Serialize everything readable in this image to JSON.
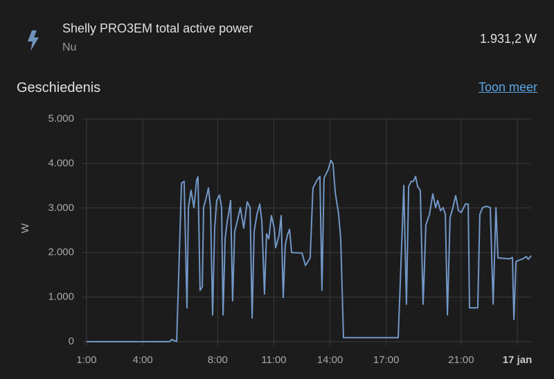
{
  "header": {
    "title": "Shelly PRO3EM total active power",
    "subtitle": "Nu",
    "state": "1.931,2 W"
  },
  "history": {
    "title": "Geschiedenis",
    "link": "Toon meer"
  },
  "chart_data": {
    "type": "line",
    "ylabel": "W",
    "grid": true,
    "xlim": [
      1,
      24.74
    ],
    "ylim": [
      0,
      5000
    ],
    "xticks": [
      {
        "value": 1,
        "label": "1:00"
      },
      {
        "value": 4,
        "label": "4:00"
      },
      {
        "value": 8,
        "label": "8:00"
      },
      {
        "value": 11,
        "label": "11:00"
      },
      {
        "value": 14,
        "label": "14:00"
      },
      {
        "value": 17,
        "label": "17:00"
      },
      {
        "value": 21,
        "label": "21:00"
      },
      {
        "value": 24,
        "label": "17 jan"
      }
    ],
    "yticks": [
      0,
      {
        "value": 1000,
        "label": "1.000"
      },
      {
        "value": 2000,
        "label": "2.000"
      },
      {
        "value": 3000,
        "label": "3.000"
      },
      {
        "value": 4000,
        "label": "4.000"
      },
      {
        "value": 5000,
        "label": "5.000"
      }
    ],
    "x": [
      1.0,
      5.44,
      5.55,
      5.81,
      6.07,
      6.21,
      6.36,
      6.44,
      6.58,
      6.73,
      6.88,
      6.95,
      7.06,
      7.18,
      7.25,
      7.4,
      7.51,
      7.62,
      7.73,
      7.84,
      7.95,
      8.1,
      8.21,
      8.29,
      8.4,
      8.51,
      8.58,
      8.69,
      8.8,
      8.91,
      9.06,
      9.21,
      9.39,
      9.58,
      9.73,
      9.84,
      9.95,
      10.1,
      10.25,
      10.36,
      10.5,
      10.61,
      10.73,
      10.87,
      11.02,
      11.1,
      11.28,
      11.39,
      11.5,
      11.61,
      11.72,
      11.84,
      11.95,
      12.5,
      12.69,
      12.94,
      13.09,
      13.31,
      13.46,
      13.57,
      13.68,
      13.91,
      14.05,
      14.16,
      14.28,
      14.46,
      14.57,
      14.72,
      17.64,
      17.79,
      17.94,
      18.08,
      18.2,
      18.34,
      18.45,
      18.57,
      18.68,
      18.82,
      18.97,
      19.12,
      19.31,
      19.49,
      19.64,
      19.75,
      19.9,
      20.04,
      20.16,
      20.27,
      20.41,
      20.56,
      20.71,
      20.86,
      21.01,
      21.23,
      21.38,
      21.45,
      21.89,
      22.0,
      22.15,
      22.34,
      22.56,
      22.71,
      22.86,
      22.97,
      23.59,
      23.74,
      23.82,
      23.93,
      24.11,
      24.3,
      24.48,
      24.59,
      24.74
    ],
    "series": [
      {
        "color": "#7298c8",
        "values": [
          0,
          0,
          50,
          0,
          3560,
          3600,
          760,
          3010,
          3400,
          3010,
          3630,
          3700,
          1150,
          1230,
          3010,
          3250,
          3450,
          3010,
          600,
          2550,
          3170,
          3290,
          3010,
          600,
          2310,
          2700,
          2860,
          3170,
          920,
          2470,
          2730,
          3010,
          2550,
          3140,
          3010,
          530,
          2470,
          2860,
          3090,
          2700,
          1070,
          2420,
          2310,
          2830,
          2550,
          2110,
          2390,
          2830,
          990,
          2160,
          2390,
          2520,
          2000,
          1990,
          1710,
          1880,
          3450,
          3630,
          3710,
          1150,
          3670,
          3870,
          4070,
          3990,
          3350,
          2860,
          2310,
          90,
          90,
          1770,
          3510,
          840,
          3480,
          3600,
          3600,
          3710,
          3480,
          3400,
          840,
          2620,
          2860,
          3320,
          3010,
          3170,
          2940,
          3010,
          2860,
          600,
          2780,
          3010,
          3280,
          2940,
          2900,
          3090,
          3090,
          760,
          760,
          2860,
          3010,
          3040,
          3010,
          840,
          3010,
          1880,
          1860,
          1890,
          500,
          1800,
          1830,
          1860,
          1910,
          1850,
          1930
        ]
      }
    ]
  }
}
